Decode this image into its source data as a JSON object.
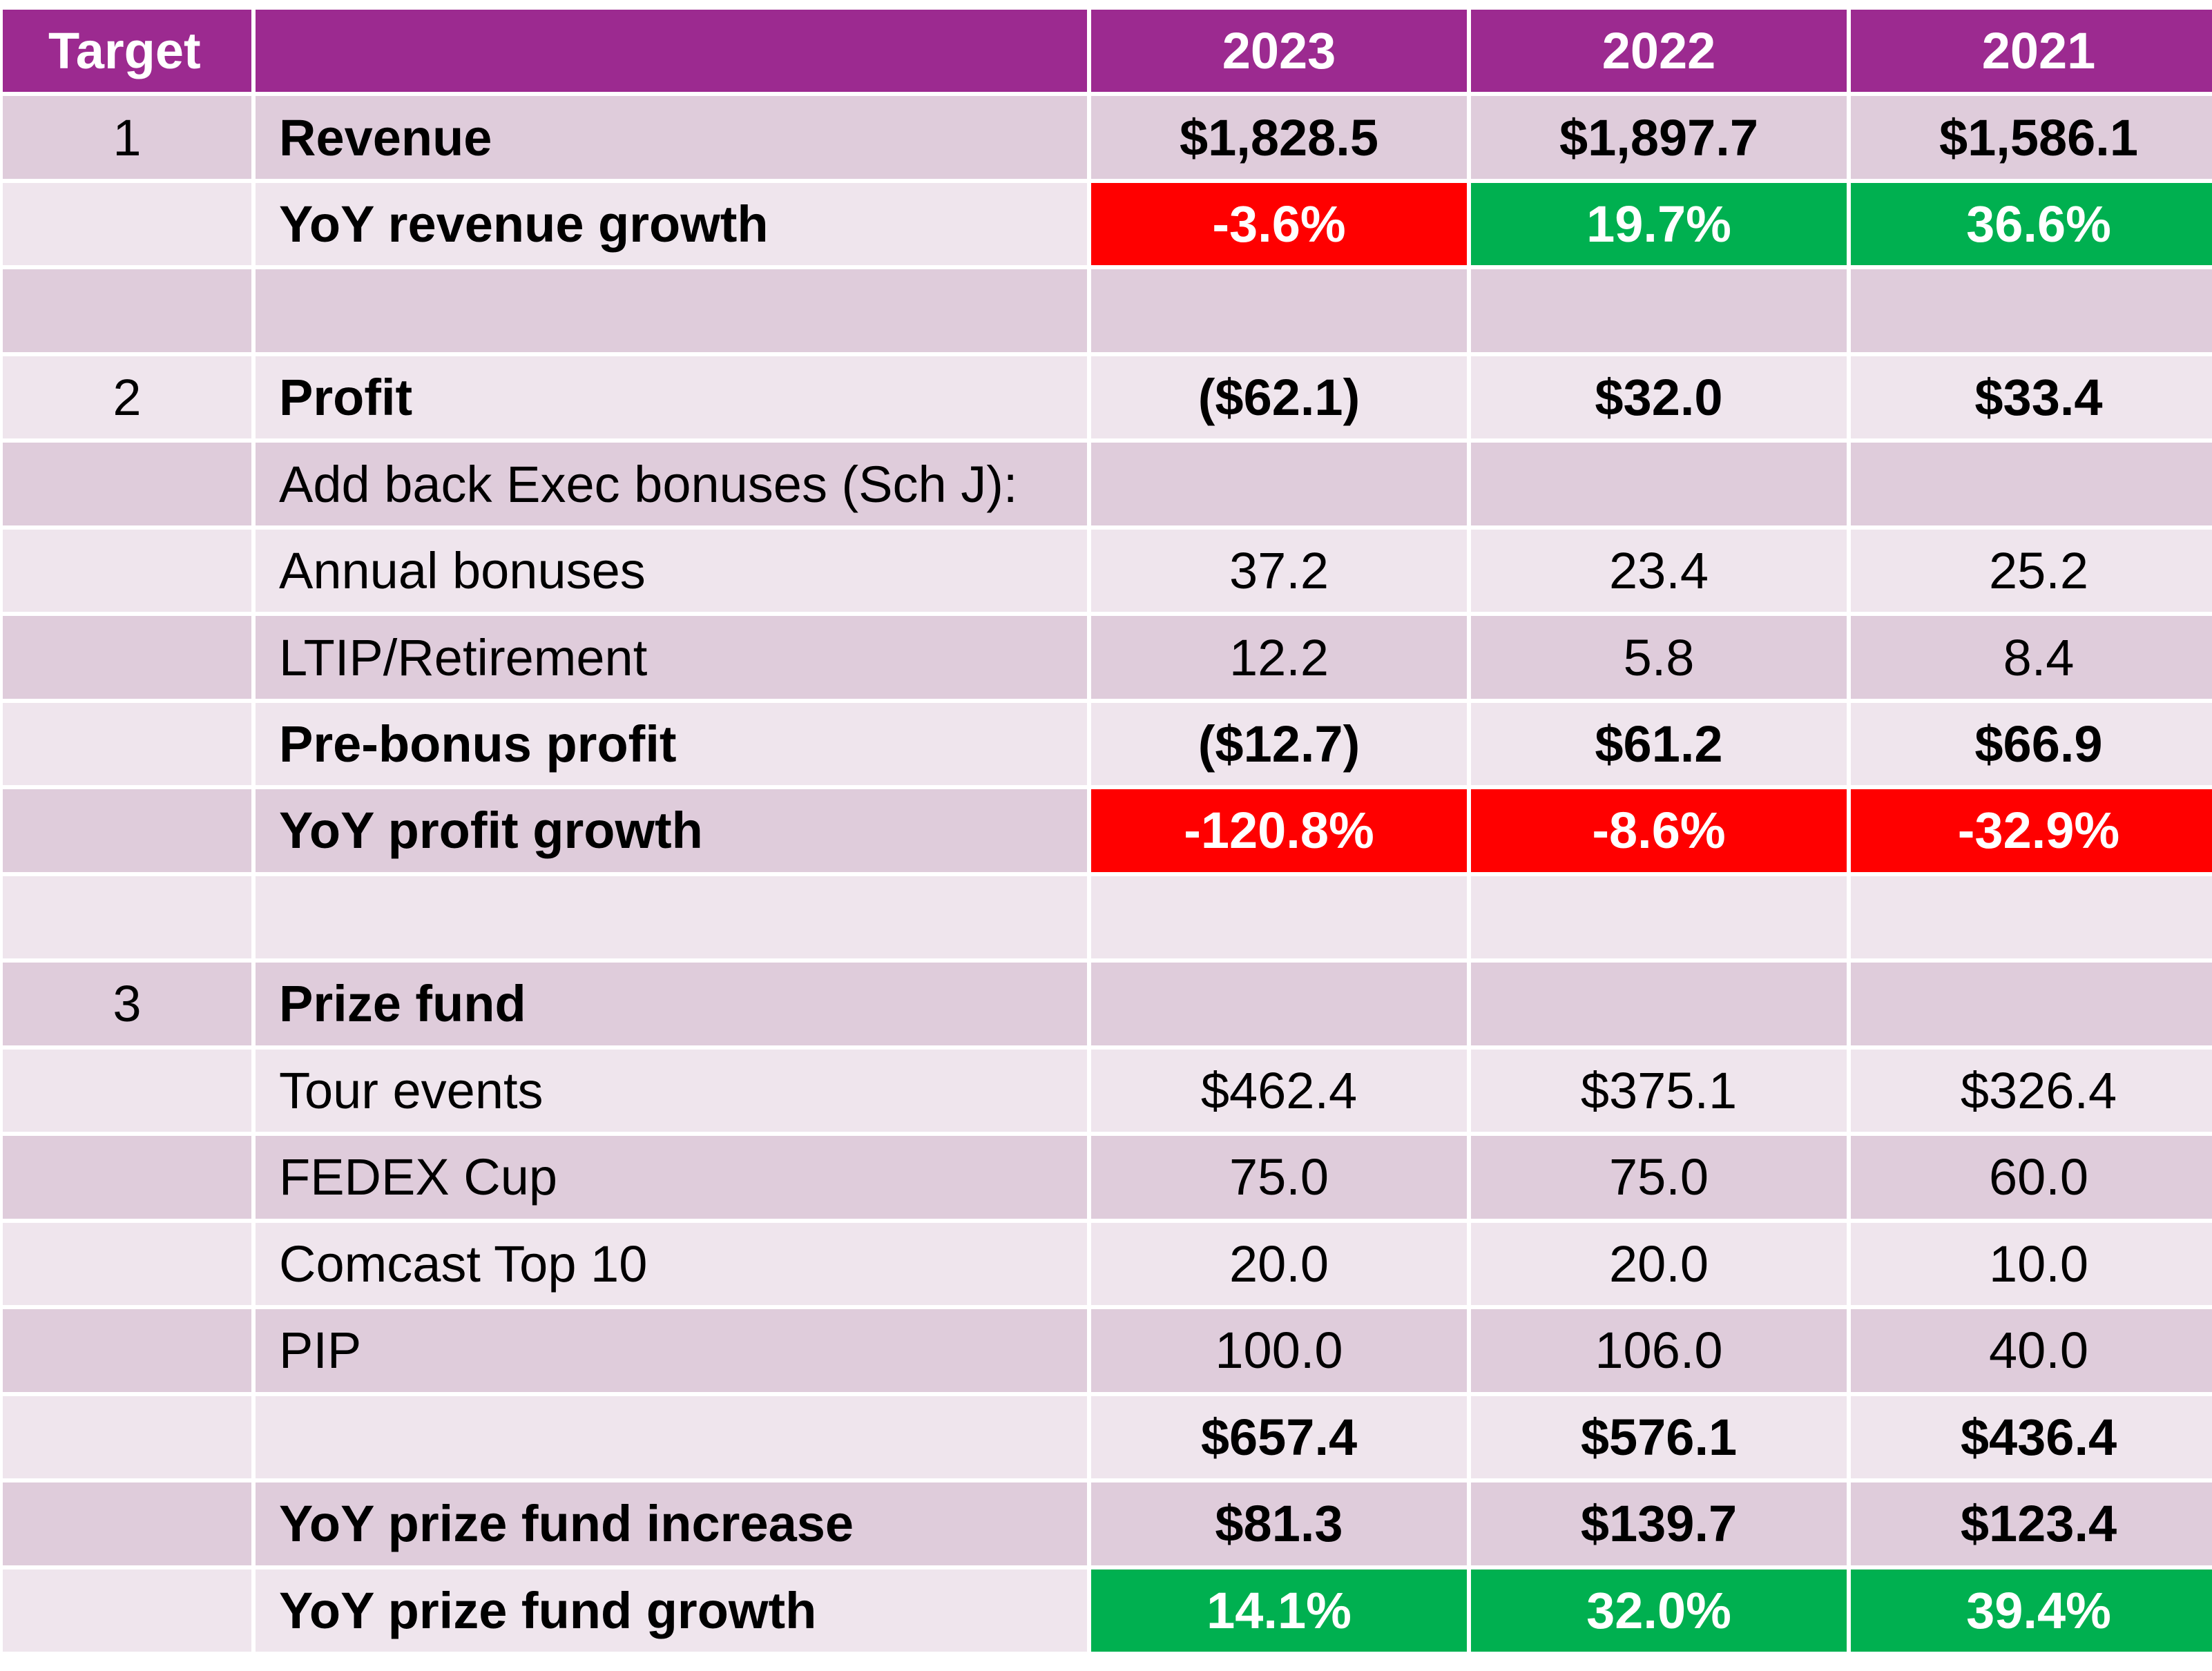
{
  "header": {
    "target": "Target",
    "label": "",
    "years": [
      "2023",
      "2022",
      "2021"
    ]
  },
  "rows": [
    {
      "target": "1",
      "label": "Revenue",
      "bold": true,
      "values": [
        "$1,828.5",
        "$1,897.7",
        "$1,586.1"
      ]
    },
    {
      "target": "",
      "label": "YoY revenue growth",
      "bold": true,
      "values": [
        "-3.6%",
        "19.7%",
        "36.6%"
      ],
      "status": [
        "red",
        "green",
        "green"
      ]
    },
    {
      "target": "",
      "label": "",
      "values": [
        "",
        "",
        ""
      ]
    },
    {
      "target": "2",
      "label": "Profit",
      "bold": true,
      "values": [
        "($62.1)",
        "$32.0",
        "$33.4"
      ]
    },
    {
      "target": "",
      "label": "Add back Exec bonuses (Sch J):",
      "values": [
        "",
        "",
        ""
      ]
    },
    {
      "target": "",
      "label": "Annual bonuses",
      "values": [
        "37.2",
        "23.4",
        "25.2"
      ]
    },
    {
      "target": "",
      "label": "LTIP/Retirement",
      "values": [
        "12.2",
        "5.8",
        "8.4"
      ]
    },
    {
      "target": "",
      "label": "Pre-bonus profit",
      "bold": true,
      "values": [
        "($12.7)",
        "$61.2",
        "$66.9"
      ]
    },
    {
      "target": "",
      "label": "YoY profit growth",
      "bold": true,
      "values": [
        "-120.8%",
        "-8.6%",
        "-32.9%"
      ],
      "status": [
        "red",
        "red",
        "red"
      ]
    },
    {
      "target": "",
      "label": "",
      "values": [
        "",
        "",
        ""
      ]
    },
    {
      "target": "3",
      "label": "Prize fund",
      "bold": true,
      "values": [
        "",
        "",
        ""
      ]
    },
    {
      "target": "",
      "label": "Tour events",
      "values": [
        "$462.4",
        "$375.1",
        "$326.4"
      ]
    },
    {
      "target": "",
      "label": "FEDEX Cup",
      "values": [
        "75.0",
        "75.0",
        "60.0"
      ]
    },
    {
      "target": "",
      "label": "Comcast Top 10",
      "values": [
        "20.0",
        "20.0",
        "10.0"
      ]
    },
    {
      "target": "",
      "label": "PIP",
      "values": [
        "100.0",
        "106.0",
        "40.0"
      ]
    },
    {
      "target": "",
      "label": "",
      "bold": true,
      "values": [
        "$657.4",
        "$576.1",
        "$436.4"
      ]
    },
    {
      "target": "",
      "label": "YoY prize fund increase",
      "bold": true,
      "values": [
        "$81.3",
        "$139.7",
        "$123.4"
      ]
    },
    {
      "target": "",
      "label": "YoY prize fund growth",
      "bold": true,
      "values": [
        "14.1%",
        "32.0%",
        "39.4%"
      ],
      "status": [
        "green",
        "green",
        "green"
      ]
    }
  ]
}
